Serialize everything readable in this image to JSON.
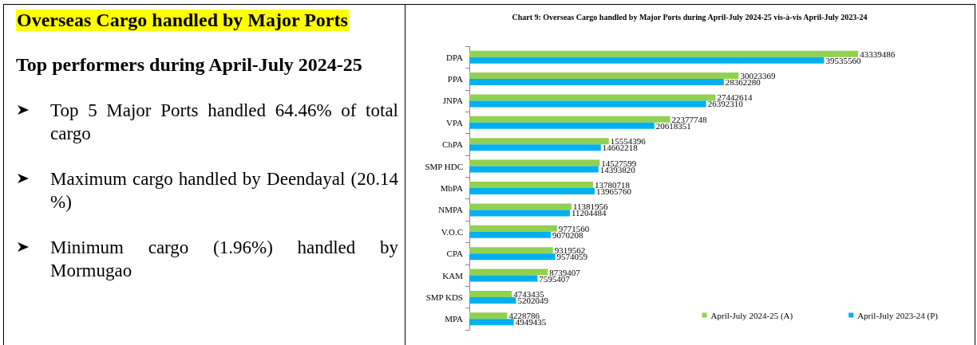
{
  "chart_data": [
    {
      "type": "other",
      "title": "Overseas Cargo handled by Major Ports",
      "subtitle": "Top performers during April-July 2024-25",
      "annotations": [
        "Top 5 Major Ports handled 64.46% of total cargo",
        "Maximum cargo handled by Deendayal (20.14 %)",
        "Minimum cargo (1.96%) handled by Mormugao"
      ]
    },
    {
      "type": "bar",
      "orientation": "horizontal",
      "title": "Chart 9: Overseas Cargo handled by Major Ports during April-July 2024-25 vis-à-vis April-July 2023-24",
      "categories": [
        "DPA",
        "PPA",
        "JNPA",
        "VPA",
        "ChPA",
        "SMP HDC",
        "MbPA",
        "NMPA",
        "V.O.C",
        "CPA",
        "KAM",
        "SMP KDS",
        "MPA"
      ],
      "series": [
        {
          "name": "April-July 2024-25 (A)",
          "color": "#92d050",
          "values": [
            43339486,
            30023369,
            27442614,
            22377748,
            15554396,
            14527599,
            13780718,
            11381956,
            9771560,
            9319562,
            8739407,
            4743435,
            4228786
          ]
        },
        {
          "name": "April-July 2023-24 (P)",
          "color": "#00b0f0",
          "values": [
            39535560,
            28362280,
            26392310,
            20618351,
            14662218,
            14393820,
            13965760,
            11204484,
            9070208,
            9574059,
            7595407,
            5202049,
            4949435
          ]
        }
      ],
      "data_labels": true,
      "legend": "bottom right",
      "tick_labels": "y"
    }
  ]
}
